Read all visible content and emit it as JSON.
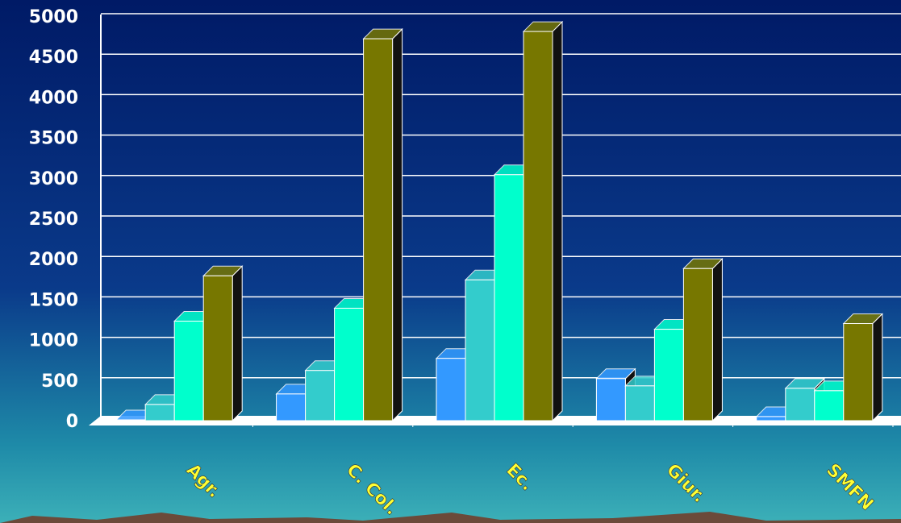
{
  "chart_data": {
    "type": "bar",
    "categories": [
      "Agr.",
      "C. Col.",
      "Ec.",
      "Giur.",
      "SMFN"
    ],
    "series": [
      {
        "color": "#3399ff",
        "values": [
          10,
          330,
          770,
          520,
          50
        ]
      },
      {
        "color": "#33cccc",
        "values": [
          200,
          620,
          1740,
          430,
          400
        ]
      },
      {
        "color": "#00ffcc",
        "values": [
          1230,
          1390,
          3040,
          1130,
          370
        ]
      },
      {
        "color": "#777700",
        "values": [
          1790,
          4720,
          4810,
          1880,
          1200
        ]
      }
    ],
    "ylim": [
      0,
      5000
    ],
    "yticks": [
      0,
      500,
      1000,
      1500,
      2000,
      2500,
      3000,
      3500,
      4000,
      4500,
      5000
    ],
    "grid": true
  }
}
